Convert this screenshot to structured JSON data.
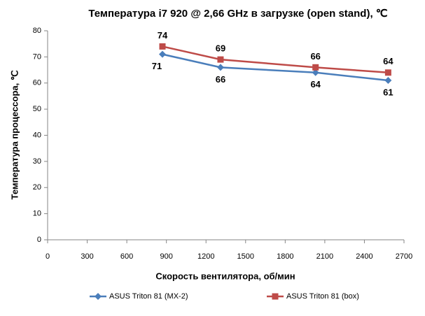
{
  "chart_data": {
    "type": "line",
    "title": "Температура i7 920 @ 2,66 GHz в загрузке (open stand), ℃",
    "x_label": "Скорость вентилятора, об/мин",
    "y_label": "Температура процессора, ℃",
    "xlim": [
      0,
      2700
    ],
    "xticks": [
      0,
      300,
      600,
      900,
      1200,
      1500,
      1800,
      2100,
      2400,
      2700
    ],
    "ylim": [
      0,
      80
    ],
    "yticks": [
      0,
      10,
      20,
      30,
      40,
      50,
      60,
      70,
      80
    ],
    "grid": false,
    "series": [
      {
        "name": "ASUS Triton 81 (MX-2)",
        "color": "#4a7ebb",
        "marker": "diamond",
        "x": [
          870,
          1310,
          2030,
          2580
        ],
        "values": [
          71,
          66,
          64,
          61
        ]
      },
      {
        "name": "ASUS Triton 81 (box)",
        "color": "#be4b48",
        "marker": "square",
        "x": [
          870,
          1310,
          2030,
          2580
        ],
        "values": [
          74,
          69,
          66,
          64
        ]
      }
    ]
  }
}
